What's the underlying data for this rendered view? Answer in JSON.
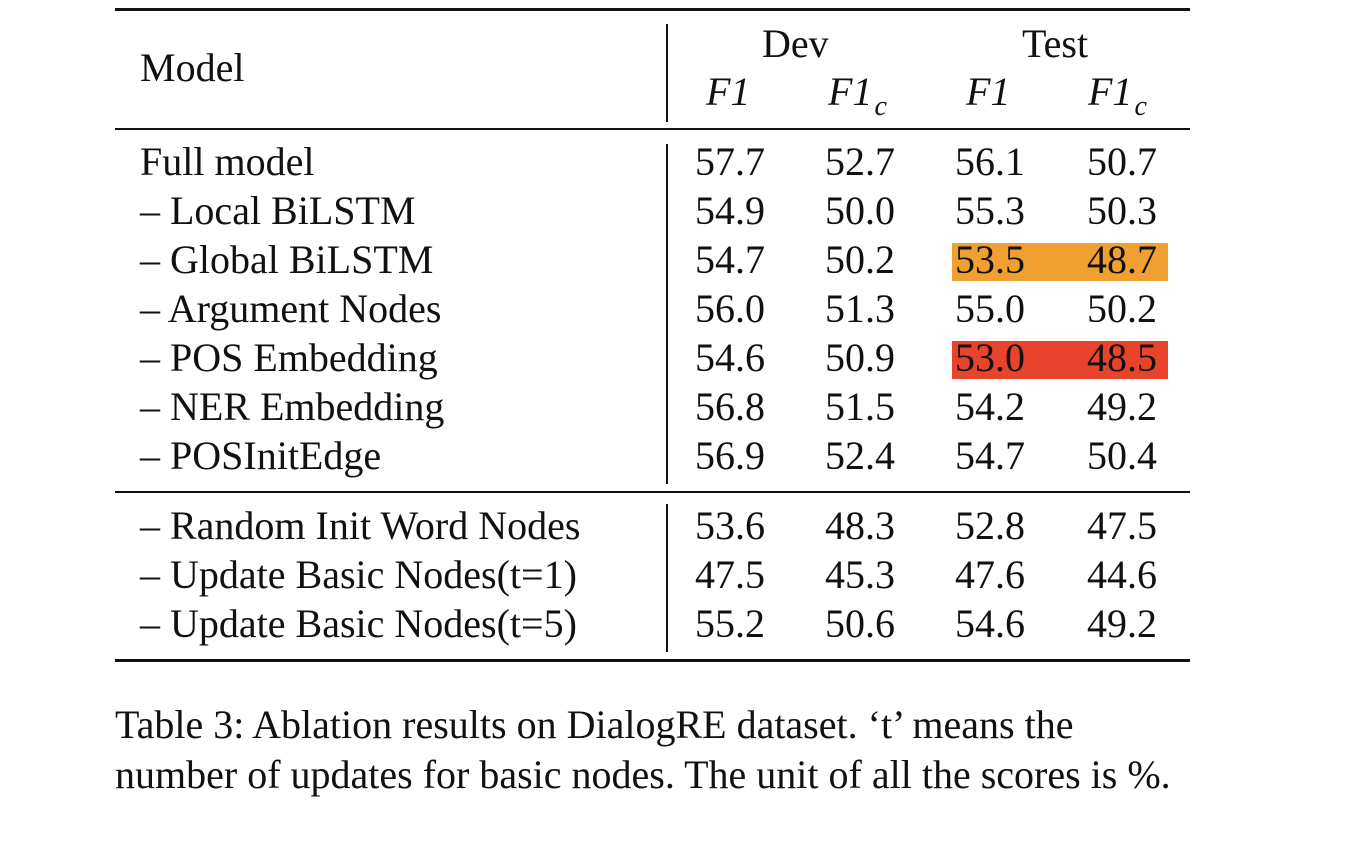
{
  "table": {
    "header": {
      "model": "Model",
      "dev": "Dev",
      "test": "Test",
      "cols": [
        {
          "main": "F1",
          "sub": ""
        },
        {
          "main": "F1",
          "sub": "c"
        },
        {
          "main": "F1",
          "sub": ""
        },
        {
          "main": "F1",
          "sub": "c"
        }
      ]
    },
    "group1": [
      {
        "model": "Full model",
        "vals": [
          "57.7",
          "52.7",
          "56.1",
          "50.7"
        ]
      },
      {
        "model": "– Local BiLSTM",
        "vals": [
          "54.9",
          "50.0",
          "55.3",
          "50.3"
        ]
      },
      {
        "model": "– Global BiLSTM",
        "vals": [
          "54.7",
          "50.2",
          "53.5",
          "48.7"
        ]
      },
      {
        "model": "– Argument Nodes",
        "vals": [
          "56.0",
          "51.3",
          "55.0",
          "50.2"
        ]
      },
      {
        "model": "– POS Embedding",
        "vals": [
          "54.6",
          "50.9",
          "53.0",
          "48.5"
        ]
      },
      {
        "model": "– NER Embedding",
        "vals": [
          "56.8",
          "51.5",
          "54.2",
          "49.2"
        ]
      },
      {
        "model": "– POSInitEdge",
        "vals": [
          "56.9",
          "52.4",
          "54.7",
          "50.4"
        ]
      }
    ],
    "group2": [
      {
        "model": "– Random Init Word Nodes",
        "vals": [
          "53.6",
          "48.3",
          "52.8",
          "47.5"
        ]
      },
      {
        "model": "– Update Basic Nodes(t=1)",
        "vals": [
          "47.5",
          "45.3",
          "47.6",
          "44.6"
        ]
      },
      {
        "model": "– Update Basic Nodes(t=5)",
        "vals": [
          "55.2",
          "50.6",
          "54.6",
          "49.2"
        ]
      }
    ],
    "highlights": {
      "orange": "#f0a030",
      "red": "#e8432b"
    }
  },
  "caption": "Table 3: Ablation results on DialogRE dataset. ‘t’ means the number of updates for basic nodes. The unit of all the scores is %."
}
